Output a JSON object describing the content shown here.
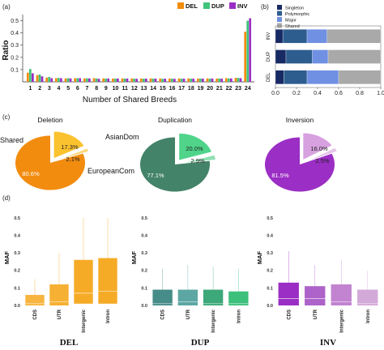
{
  "panel_labels": {
    "a": "(a)",
    "b": "(b)",
    "c": "(c)",
    "d": "(d)"
  },
  "colors": {
    "DEL": "#f28c0f",
    "DUP": "#3fc47a",
    "INV": "#9b2ec4",
    "del_light": "#fbc22f",
    "dup_light": "#4fd48a",
    "inv_light": "#d7a0df",
    "singleton": "#172a63",
    "polymorphic": "#2d5d8e",
    "major": "#7090e3",
    "shared": "#a9a9a9",
    "dup_pie": "#43836a",
    "dup_box": "#468c88",
    "dup_box2": "#5ca7a3",
    "dup_box3": "#3da87a",
    "dup_box4": "#3cc07c",
    "del_box": "#f5a20f",
    "inv_box": "#9b2ec4",
    "inv_box2": "#ad63c9",
    "inv_box3": "#c283d1",
    "inv_box4": "#d3a9d8"
  },
  "chart_data": [
    {
      "panel": "a",
      "type": "bar",
      "xlabel": "Number of Shared Breeds",
      "ylabel": "Ratio",
      "ylim": [
        0,
        0.55
      ],
      "yticks": [
        "0.1",
        "0.2",
        "0.3",
        "0.4",
        "0.5"
      ],
      "categories": [
        "1",
        "2",
        "3",
        "4",
        "5",
        "6",
        "7",
        "8",
        "9",
        "10",
        "11",
        "12",
        "13",
        "14",
        "15",
        "16",
        "17",
        "18",
        "19",
        "20",
        "21",
        "22",
        "23",
        "24"
      ],
      "legend_placement": "top-right",
      "series": [
        {
          "name": "DEL",
          "values": [
            0.075,
            0.055,
            0.035,
            0.03,
            0.028,
            0.03,
            0.028,
            0.03,
            0.028,
            0.027,
            0.028,
            0.028,
            0.027,
            0.028,
            0.027,
            0.027,
            0.028,
            0.028,
            0.027,
            0.028,
            0.027,
            0.03,
            0.033,
            0.41
          ]
        },
        {
          "name": "DUP",
          "values": [
            0.105,
            0.06,
            0.04,
            0.032,
            0.03,
            0.03,
            0.029,
            0.028,
            0.027,
            0.027,
            0.027,
            0.026,
            0.026,
            0.026,
            0.025,
            0.026,
            0.026,
            0.026,
            0.027,
            0.026,
            0.027,
            0.028,
            0.032,
            0.5
          ]
        },
        {
          "name": "INV",
          "values": [
            0.07,
            0.045,
            0.03,
            0.03,
            0.028,
            0.03,
            0.028,
            0.025,
            0.027,
            0.027,
            0.027,
            0.025,
            0.026,
            0.026,
            0.026,
            0.025,
            0.026,
            0.026,
            0.026,
            0.027,
            0.026,
            0.028,
            0.03,
            0.52
          ]
        }
      ]
    },
    {
      "panel": "b",
      "type": "bar",
      "orientation": "horizontal-stacked",
      "categories": [
        "INV",
        "DUP",
        "DEL"
      ],
      "xlim": [
        0,
        1
      ],
      "xticks": [
        "0.0",
        "0.2",
        "0.4",
        "0.6",
        "0.8",
        "1.0"
      ],
      "legend_placement": "top",
      "series": [
        {
          "name": "Singleton",
          "values": [
            0.07,
            0.1,
            0.08
          ]
        },
        {
          "name": "Polymorphic",
          "values": [
            0.23,
            0.25,
            0.22
          ]
        },
        {
          "name": "Major",
          "values": [
            0.19,
            0.15,
            0.3
          ]
        },
        {
          "name": "Shared",
          "values": [
            0.51,
            0.5,
            0.4
          ]
        }
      ]
    },
    {
      "panel": "c",
      "type": "pie",
      "title": "Deletion",
      "slices": [
        {
          "label": "",
          "value": 80.6,
          "text": "80.6%"
        },
        {
          "label": "AsianDom",
          "value": 17.3,
          "text": "17.3%"
        },
        {
          "label": "EuropeanCom",
          "value": 2.1,
          "text": "2.1%"
        }
      ],
      "outer_labels": {
        "shared": "Shared",
        "asian": "AsianDom",
        "european": "EuropeanCom"
      }
    },
    {
      "panel": "c",
      "type": "pie",
      "title": "Duplication",
      "slices": [
        {
          "label": "",
          "value": 77.1,
          "text": "77.1%"
        },
        {
          "label": "",
          "value": 20.0,
          "text": "20.0%"
        },
        {
          "label": "",
          "value": 2.9,
          "text": "2.9%"
        }
      ]
    },
    {
      "panel": "c",
      "type": "pie",
      "title": "Inversion",
      "slices": [
        {
          "label": "",
          "value": 81.5,
          "text": "81.5%"
        },
        {
          "label": "",
          "value": 16.0,
          "text": "16.0%"
        },
        {
          "label": "",
          "value": 2.5,
          "text": "2.5%"
        }
      ]
    },
    {
      "panel": "d",
      "type": "box",
      "title": "DEL",
      "ylabel": "MAF",
      "ylim": [
        0,
        0.55
      ],
      "yticks": [
        "0.0",
        "0.1",
        "0.2",
        "0.3",
        "0.4",
        "0.5"
      ],
      "categories": [
        "CDS",
        "UTR",
        "Intergenic",
        "Intron"
      ],
      "boxes": [
        {
          "q1": 0.0,
          "median": 0.01,
          "q3": 0.06,
          "whisker_high": 0.15
        },
        {
          "q1": 0.0,
          "median": 0.02,
          "q3": 0.12,
          "whisker_high": 0.3
        },
        {
          "q1": 0.01,
          "median": 0.07,
          "q3": 0.26,
          "whisker_high": 0.5
        },
        {
          "q1": 0.01,
          "median": 0.08,
          "q3": 0.27,
          "whisker_high": 0.5
        }
      ]
    },
    {
      "panel": "d",
      "type": "box",
      "title": "DUP",
      "ylabel": "MAF",
      "ylim": [
        0,
        0.55
      ],
      "yticks": [
        "0.0",
        "0.1",
        "0.2",
        "0.3",
        "0.4",
        "0.5"
      ],
      "categories": [
        "CDS",
        "UTR",
        "Intergenic",
        "Intron"
      ],
      "boxes": [
        {
          "q1": 0.0,
          "median": 0.01,
          "q3": 0.09,
          "whisker_high": 0.21
        },
        {
          "q1": 0.0,
          "median": 0.02,
          "q3": 0.09,
          "whisker_high": 0.23
        },
        {
          "q1": 0.0,
          "median": 0.01,
          "q3": 0.09,
          "whisker_high": 0.22
        },
        {
          "q1": 0.0,
          "median": 0.01,
          "q3": 0.08,
          "whisker_high": 0.21
        }
      ]
    },
    {
      "panel": "d",
      "type": "box",
      "title": "INV",
      "ylabel": "MAF",
      "ylim": [
        0,
        0.55
      ],
      "yticks": [
        "0.0",
        "0.1",
        "0.2",
        "0.3",
        "0.4",
        "0.5"
      ],
      "categories": [
        "CDS",
        "UTR",
        "Intergenic",
        "Intron"
      ],
      "boxes": [
        {
          "q1": 0.0,
          "median": 0.04,
          "q3": 0.13,
          "whisker_high": 0.31
        },
        {
          "q1": 0.0,
          "median": 0.04,
          "q3": 0.11,
          "whisker_high": 0.23
        },
        {
          "q1": 0.0,
          "median": 0.02,
          "q3": 0.12,
          "whisker_high": 0.26
        },
        {
          "q1": 0.0,
          "median": 0.01,
          "q3": 0.09,
          "whisker_high": 0.2
        }
      ]
    }
  ]
}
